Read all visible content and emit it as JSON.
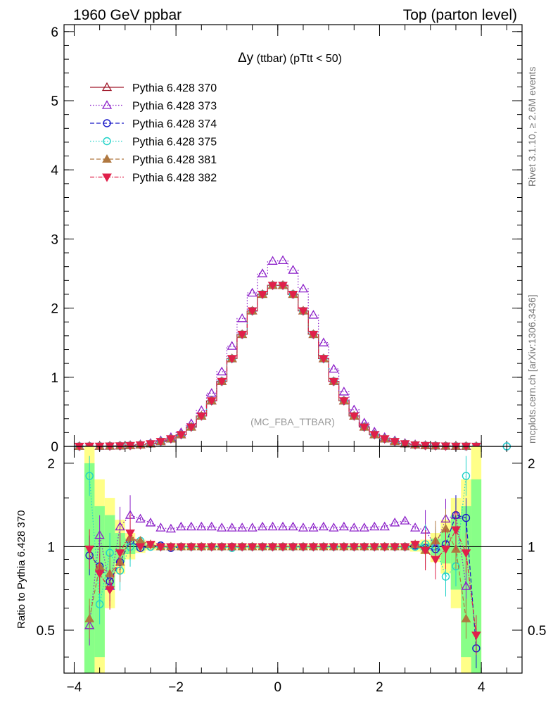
{
  "header": {
    "left": "1960 GeV ppbar",
    "right": "Top (parton level)"
  },
  "side_text": {
    "rivet": "Rivet 3.1.10, ≥ 2.6M events",
    "mcplots": "mcplots.cern.ch [arXiv:1306.3436]"
  },
  "chart_data": [
    {
      "type": "line",
      "title": "Δy (ttbar) (pTtt < 50)",
      "title_main": "Δy",
      "title_rest": " (ttbar) (pTtt < 50)",
      "watermark": "(MC_FBA_TTBAR)",
      "xlim": [
        -4.2,
        4.8
      ],
      "ylim": [
        0,
        6.1
      ],
      "x_ticks": [
        -4,
        -2,
        0,
        2,
        4
      ],
      "x_tick_labels": [
        "−4",
        "−2",
        "0",
        "2",
        "4"
      ],
      "y_ticks": [
        0,
        1,
        2,
        3,
        4,
        5,
        6
      ],
      "y_tick_labels": [
        "0",
        "1",
        "2",
        "3",
        "4",
        "5",
        "6"
      ],
      "legend_position": "top-left",
      "x": [
        -3.9,
        -3.7,
        -3.5,
        -3.3,
        -3.1,
        -2.9,
        -2.7,
        -2.5,
        -2.3,
        -2.1,
        -1.9,
        -1.7,
        -1.5,
        -1.3,
        -1.1,
        -0.9,
        -0.7,
        -0.5,
        -0.3,
        -0.1,
        0.1,
        0.3,
        0.5,
        0.7,
        0.9,
        1.1,
        1.3,
        1.5,
        1.7,
        1.9,
        2.1,
        2.3,
        2.5,
        2.7,
        2.9,
        3.1,
        3.3,
        3.5,
        3.7,
        3.9,
        4.5
      ],
      "series": [
        {
          "name": "Pythia 6.428 370",
          "color": "#a0182a",
          "marker": "triangle-open",
          "dash": "",
          "values": [
            0.001,
            0.002,
            0.003,
            0.005,
            0.008,
            0.013,
            0.022,
            0.038,
            0.07,
            0.11,
            0.17,
            0.28,
            0.44,
            0.66,
            0.94,
            1.27,
            1.62,
            1.96,
            2.2,
            2.33,
            2.33,
            2.2,
            1.96,
            1.62,
            1.27,
            0.94,
            0.66,
            0.44,
            0.28,
            0.17,
            0.11,
            0.07,
            0.038,
            0.022,
            0.013,
            0.008,
            0.005,
            0.003,
            0.002,
            0.001,
            null
          ]
        },
        {
          "name": "Pythia 6.428 373",
          "color": "#8b1fc8",
          "marker": "triangle-open",
          "dash": "1.5,2.5",
          "values": [
            0.001,
            0.002,
            0.003,
            0.005,
            0.009,
            0.016,
            0.027,
            0.047,
            0.085,
            0.13,
            0.2,
            0.33,
            0.52,
            0.77,
            1.08,
            1.45,
            1.85,
            2.22,
            2.5,
            2.68,
            2.69,
            2.55,
            2.28,
            1.9,
            1.5,
            1.12,
            0.79,
            0.53,
            0.34,
            0.21,
            0.13,
            0.085,
            0.047,
            0.027,
            0.016,
            0.009,
            0.005,
            0.003,
            0.002,
            0.001,
            null
          ]
        },
        {
          "name": "Pythia 6.428 374",
          "color": "#1a1ac8",
          "marker": "circle-open",
          "dash": "6,3",
          "values": [
            0.001,
            0.002,
            0.003,
            0.005,
            0.008,
            0.013,
            0.022,
            0.038,
            0.07,
            0.11,
            0.17,
            0.28,
            0.44,
            0.66,
            0.94,
            1.27,
            1.62,
            1.96,
            2.2,
            2.33,
            2.33,
            2.2,
            1.96,
            1.62,
            1.27,
            0.94,
            0.66,
            0.44,
            0.28,
            0.17,
            0.11,
            0.07,
            0.038,
            0.022,
            0.013,
            0.008,
            0.005,
            0.003,
            0.002,
            0.001,
            0.0
          ]
        },
        {
          "name": "Pythia 6.428 375",
          "color": "#20d2c8",
          "marker": "circle-open",
          "dash": "1.5,2.5",
          "values": [
            0.001,
            0.002,
            0.003,
            0.005,
            0.008,
            0.013,
            0.022,
            0.038,
            0.07,
            0.11,
            0.17,
            0.28,
            0.44,
            0.66,
            0.94,
            1.27,
            1.62,
            1.96,
            2.2,
            2.33,
            2.33,
            2.2,
            1.96,
            1.62,
            1.27,
            0.94,
            0.66,
            0.44,
            0.28,
            0.17,
            0.11,
            0.07,
            0.038,
            0.022,
            0.013,
            0.008,
            0.005,
            0.003,
            0.002,
            0.001,
            0.0
          ]
        },
        {
          "name": "Pythia 6.428 381",
          "color": "#b07840",
          "marker": "triangle-filled",
          "dash": "6,3",
          "values": [
            0.001,
            0.002,
            0.003,
            0.005,
            0.008,
            0.013,
            0.022,
            0.038,
            0.07,
            0.11,
            0.17,
            0.28,
            0.44,
            0.66,
            0.94,
            1.27,
            1.62,
            1.96,
            2.2,
            2.33,
            2.33,
            2.2,
            1.96,
            1.62,
            1.27,
            0.94,
            0.66,
            0.44,
            0.28,
            0.17,
            0.11,
            0.07,
            0.038,
            0.022,
            0.013,
            0.008,
            0.005,
            0.003,
            0.002,
            0.001,
            null
          ]
        },
        {
          "name": "Pythia 6.428 382",
          "color": "#e0204a",
          "marker": "triangle-down-filled",
          "dash": "6,2,1.5,2",
          "values": [
            0.001,
            0.002,
            0.003,
            0.005,
            0.008,
            0.013,
            0.022,
            0.038,
            0.07,
            0.11,
            0.17,
            0.28,
            0.44,
            0.66,
            0.94,
            1.27,
            1.62,
            1.96,
            2.2,
            2.33,
            2.33,
            2.2,
            1.96,
            1.62,
            1.27,
            0.94,
            0.66,
            0.44,
            0.28,
            0.17,
            0.11,
            0.07,
            0.038,
            0.022,
            0.013,
            0.008,
            0.005,
            0.003,
            0.002,
            0.001,
            null
          ]
        }
      ]
    },
    {
      "type": "line",
      "ylabel": "Ratio to Pythia 6.428 370",
      "xlim": [
        -4.2,
        4.8
      ],
      "ylim": [
        0.35,
        2.3
      ],
      "x_ticks": [
        -4,
        -2,
        0,
        2,
        4
      ],
      "x_tick_labels": [
        "−4",
        "−2",
        "0",
        "2",
        "4"
      ],
      "y_ticks": [
        0.5,
        1,
        2
      ],
      "y_tick_labels": [
        "0.5",
        "1",
        "2"
      ],
      "reference_line": 1,
      "x": [
        -3.7,
        -3.5,
        -3.3,
        -3.1,
        -2.9,
        -2.7,
        -2.5,
        -2.3,
        -2.1,
        -1.9,
        -1.7,
        -1.5,
        -1.3,
        -1.1,
        -0.9,
        -0.7,
        -0.5,
        -0.3,
        -0.1,
        0.1,
        0.3,
        0.5,
        0.7,
        0.9,
        1.1,
        1.3,
        1.5,
        1.7,
        1.9,
        2.1,
        2.3,
        2.5,
        2.7,
        2.9,
        3.1,
        3.3,
        3.5,
        3.7,
        3.9
      ],
      "band_x_edges": [
        -3.8,
        -3.6,
        -3.4,
        -3.2,
        -3.0,
        -2.8,
        -2.6,
        -2.4,
        2.4,
        2.6,
        2.8,
        3.0,
        3.2,
        3.4,
        3.6,
        3.8,
        4.0
      ],
      "bands": {
        "yellow": [
          [
            0.3,
            2.3
          ],
          [
            0.3,
            1.75
          ],
          [
            0.6,
            1.5
          ],
          [
            0.8,
            1.25
          ],
          [
            0.9,
            1.12
          ],
          [
            0.95,
            1.06
          ],
          [
            0.97,
            1.04
          ],
          [
            0.98,
            1.02
          ],
          [
            0.98,
            1.02
          ],
          [
            0.96,
            1.04
          ],
          [
            0.94,
            1.06
          ],
          [
            0.88,
            1.12
          ],
          [
            0.8,
            1.25
          ],
          [
            0.6,
            1.5
          ],
          [
            0.3,
            1.75
          ],
          [
            0.3,
            2.3
          ]
        ],
        "green": [
          [
            0.3,
            2.0
          ],
          [
            0.4,
            1.4
          ],
          [
            0.7,
            1.3
          ],
          [
            0.88,
            1.12
          ],
          [
            0.94,
            1.07
          ],
          [
            0.97,
            1.03
          ],
          [
            0.985,
            1.015
          ],
          [
            0.99,
            1.01
          ],
          [
            0.99,
            1.01
          ],
          [
            0.98,
            1.02
          ],
          [
            0.97,
            1.03
          ],
          [
            0.93,
            1.07
          ],
          [
            0.87,
            1.13
          ],
          [
            0.7,
            1.3
          ],
          [
            0.4,
            1.4
          ],
          [
            0.3,
            1.75
          ]
        ]
      },
      "series": [
        {
          "name": "Pythia 6.428 370",
          "color": "#a0182a",
          "values": [
            1,
            1,
            1,
            1,
            1,
            1,
            1,
            1,
            1,
            1,
            1,
            1,
            1,
            1,
            1,
            1,
            1,
            1,
            1,
            1,
            1,
            1,
            1,
            1,
            1,
            1,
            1,
            1,
            1,
            1,
            1,
            1,
            1,
            1,
            1,
            1,
            1,
            1,
            1
          ]
        },
        {
          "name": "Pythia 6.428 373",
          "color": "#8b1fc8",
          "values": [
            0.52,
            1.1,
            0.72,
            1.18,
            1.3,
            1.26,
            1.22,
            1.17,
            1.16,
            1.18,
            1.18,
            1.18,
            1.18,
            1.17,
            1.17,
            1.17,
            1.17,
            1.18,
            1.18,
            1.18,
            1.18,
            1.17,
            1.17,
            1.18,
            1.17,
            1.18,
            1.17,
            1.17,
            1.18,
            1.18,
            1.22,
            1.24,
            1.17,
            1.15,
            1.0,
            1.26,
            1.3,
            0.72,
            null
          ]
        },
        {
          "name": "Pythia 6.428 374",
          "color": "#1a1ac8",
          "values": [
            0.93,
            0.85,
            0.75,
            0.88,
            1.05,
            0.99,
            1.0,
            1.01,
            0.99,
            1.0,
            1.0,
            1.0,
            1.0,
            1.0,
            1.0,
            1.0,
            1.0,
            1.0,
            1.0,
            1.0,
            1.0,
            1.0,
            1.0,
            1.0,
            1.0,
            1.0,
            1.0,
            1.0,
            1.0,
            1.0,
            1.0,
            1.0,
            1.01,
            0.99,
            0.98,
            1.02,
            1.3,
            1.27,
            0.43
          ]
        },
        {
          "name": "Pythia 6.428 375",
          "color": "#20d2c8",
          "values": [
            1.8,
            0.62,
            0.95,
            0.82,
            1.0,
            1.05,
            1.0,
            1.0,
            1.0,
            1.0,
            1.0,
            1.0,
            1.0,
            1.0,
            0.99,
            1.0,
            1.0,
            1.0,
            1.0,
            1.0,
            1.0,
            1.0,
            1.0,
            1.0,
            1.0,
            1.0,
            1.0,
            1.0,
            1.0,
            1.0,
            1.0,
            1.0,
            1.0,
            1.02,
            1.0,
            0.78,
            0.85,
            1.8,
            null
          ]
        },
        {
          "name": "Pythia 6.428 381",
          "color": "#b07840",
          "values": [
            0.55,
            0.85,
            0.8,
            0.88,
            1.08,
            1.05,
            1.02,
            1.0,
            1.0,
            1.0,
            1.0,
            1.0,
            1.0,
            1.0,
            1.0,
            1.0,
            1.0,
            1.0,
            1.0,
            1.0,
            1.0,
            1.0,
            1.0,
            1.0,
            1.0,
            1.0,
            1.0,
            1.0,
            1.0,
            1.0,
            1.0,
            1.0,
            1.02,
            0.97,
            1.05,
            1.16,
            0.98,
            0.55,
            null
          ]
        },
        {
          "name": "Pythia 6.428 382",
          "color": "#e0204a",
          "values": [
            0.98,
            0.8,
            0.7,
            0.95,
            1.12,
            1.0,
            1.02,
            1.0,
            1.0,
            1.0,
            1.0,
            1.0,
            1.0,
            1.0,
            1.0,
            1.0,
            1.0,
            1.0,
            1.0,
            1.0,
            1.0,
            1.0,
            1.0,
            1.0,
            1.0,
            1.0,
            1.0,
            1.0,
            1.0,
            1.0,
            1.0,
            1.0,
            1.02,
            0.97,
            0.9,
            0.98,
            1.15,
            0.95,
            0.48
          ]
        }
      ]
    }
  ]
}
